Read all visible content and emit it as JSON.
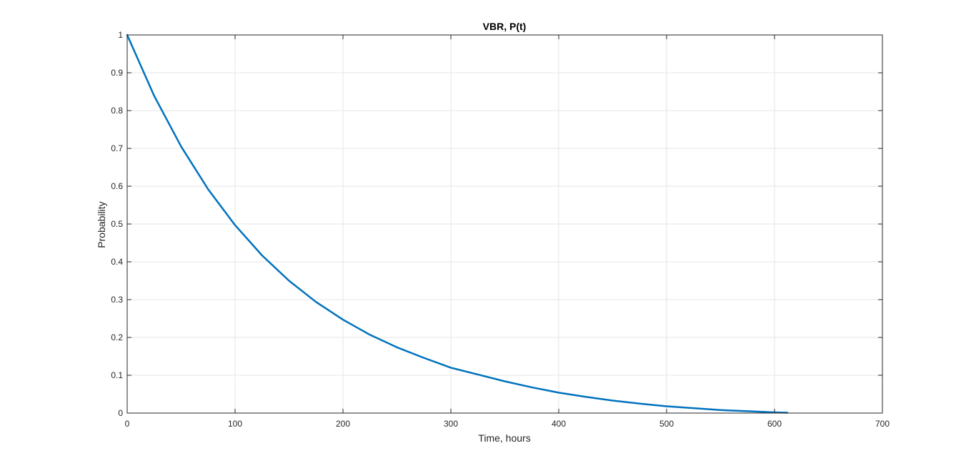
{
  "chart_data": {
    "type": "line",
    "title": "VBR, P(t)",
    "xlabel": "Time, hours",
    "ylabel": "Probability",
    "xlim": [
      0,
      700
    ],
    "ylim": [
      0,
      1
    ],
    "xticks": [
      0,
      100,
      200,
      300,
      400,
      500,
      600,
      700
    ],
    "xtick_labels": [
      "0",
      "100",
      "200",
      "300",
      "400",
      "500",
      "600",
      "700"
    ],
    "yticks": [
      0,
      0.1,
      0.2,
      0.3,
      0.4,
      0.5,
      0.6,
      0.7,
      0.8,
      0.9,
      1
    ],
    "ytick_labels": [
      "0",
      "0.1",
      "0.2",
      "0.3",
      "0.4",
      "0.5",
      "0.6",
      "0.7",
      "0.8",
      "0.9",
      "1"
    ],
    "grid": true,
    "series": [
      {
        "color": "#0072BD",
        "x": [
          0,
          25,
          50,
          75,
          100,
          125,
          150,
          175,
          200,
          225,
          250,
          275,
          300,
          325,
          350,
          375,
          400,
          425,
          450,
          475,
          500,
          525,
          550,
          575,
          600,
          612
        ],
        "y": [
          1.0,
          0.839,
          0.705,
          0.592,
          0.497,
          0.417,
          0.35,
          0.294,
          0.247,
          0.207,
          0.174,
          0.146,
          0.12,
          0.102,
          0.084,
          0.068,
          0.054,
          0.043,
          0.033,
          0.025,
          0.018,
          0.013,
          0.008,
          0.005,
          0.002,
          0.001
        ]
      }
    ]
  }
}
